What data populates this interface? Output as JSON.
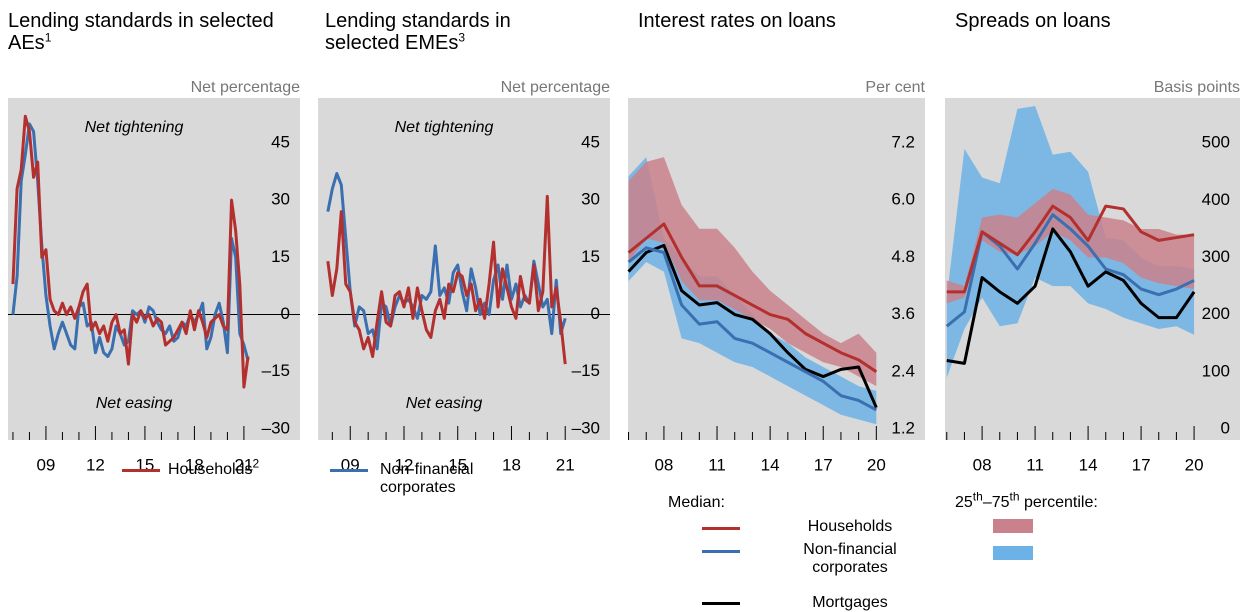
{
  "chart_data": [
    {
      "type": "line",
      "title": "Lending standards in selected AEs",
      "title_note": "1",
      "y_label": "Net percentage",
      "background": "#d9d9d9",
      "zero_line": true,
      "annotations": [
        "Net tightening",
        "Net easing"
      ],
      "xlim": [
        2006.7,
        2024.4
      ],
      "ylim": [
        -32.9,
        56.8
      ],
      "xticks": [
        {
          "value": 2009,
          "label": "09"
        },
        {
          "value": 2012,
          "label": "12"
        },
        {
          "value": 2015,
          "label": "15"
        },
        {
          "value": 2018,
          "label": "18"
        },
        {
          "value": 2021,
          "label": "21"
        }
      ],
      "xminorticks": [
        2007,
        2008,
        2010,
        2011,
        2013,
        2014,
        2016,
        2017,
        2019,
        2020
      ],
      "yticks": [
        {
          "value": -30,
          "label": "–30"
        },
        {
          "value": -15,
          "label": "–15"
        },
        0,
        15,
        30,
        45
      ],
      "x": [
        2007,
        2007.25,
        2007.5,
        2007.75,
        2008,
        2008.25,
        2008.5,
        2008.75,
        2009,
        2009.25,
        2009.5,
        2009.75,
        2010,
        2010.25,
        2010.5,
        2010.75,
        2011,
        2011.25,
        2011.5,
        2011.75,
        2012,
        2012.25,
        2012.5,
        2012.75,
        2013,
        2013.25,
        2013.5,
        2013.75,
        2014,
        2014.25,
        2014.5,
        2014.75,
        2015,
        2015.25,
        2015.5,
        2015.75,
        2016,
        2016.25,
        2016.5,
        2016.75,
        2017,
        2017.25,
        2017.5,
        2017.75,
        2018,
        2018.25,
        2018.5,
        2018.75,
        2019,
        2019.25,
        2019.5,
        2019.75,
        2020,
        2020.25,
        2020.5,
        2020.75,
        2021,
        2021.25
      ],
      "series": [
        {
          "name": "Households",
          "name_note": "2",
          "color": "#b3302f",
          "values": [
            8,
            33,
            38,
            52,
            48,
            36,
            40,
            15,
            17,
            4,
            1,
            0,
            3,
            0,
            2,
            -1,
            2,
            6,
            8,
            -4,
            -2,
            -5,
            -3,
            -7,
            -2,
            0,
            -5,
            -4,
            -13,
            0,
            -2,
            1,
            -1,
            0,
            -3,
            -1,
            -2,
            -8,
            -7,
            -6,
            -4,
            -2,
            -5,
            1,
            -4,
            1,
            -2,
            -6,
            -2,
            -1,
            0,
            -3,
            -4,
            30,
            22,
            8,
            -19,
            -11
          ]
        },
        {
          "color": "#3a6fb0",
          "values": [
            0,
            10,
            35,
            42,
            50,
            48,
            35,
            18,
            5,
            -3,
            -9,
            -5,
            -2,
            -5,
            -8,
            -9,
            2,
            3,
            -3,
            -2,
            -10,
            -6,
            -10,
            -11,
            -9,
            -3,
            -5,
            -8,
            -7,
            1,
            0,
            1,
            -2,
            2,
            1,
            -2,
            -4,
            -5,
            -3,
            -7,
            -6,
            -2,
            -3,
            0,
            -2,
            0,
            3,
            -9,
            -6,
            0,
            3,
            -2,
            -10,
            20,
            15,
            -5,
            -8,
            -12
          ]
        }
      ]
    },
    {
      "type": "line",
      "title": "Lending standards in selected EMEs",
      "title_note": "3",
      "y_label": "Net percentage",
      "background": "#d9d9d9",
      "zero_line": true,
      "annotations": [
        "Net tightening",
        "Net easing"
      ],
      "xlim": [
        2007.2,
        2023.5
      ],
      "ylim": [
        -32.9,
        56.8
      ],
      "xticks": [
        {
          "value": 2009,
          "label": "09"
        },
        {
          "value": 2012,
          "label": "12"
        },
        {
          "value": 2015,
          "label": "15"
        },
        {
          "value": 2018,
          "label": "18"
        },
        {
          "value": 2021,
          "label": "21"
        }
      ],
      "xminorticks": [
        2008,
        2010,
        2011,
        2013,
        2014,
        2016,
        2017,
        2019,
        2020
      ],
      "yticks": [
        {
          "value": -30,
          "label": "–30"
        },
        {
          "value": -15,
          "label": "–15"
        },
        0,
        15,
        30,
        45
      ],
      "x": [
        2007.75,
        2008,
        2008.25,
        2008.5,
        2008.75,
        2009,
        2009.25,
        2009.5,
        2009.75,
        2010,
        2010.25,
        2010.5,
        2010.75,
        2011,
        2011.25,
        2011.5,
        2011.75,
        2012,
        2012.25,
        2012.5,
        2012.75,
        2013,
        2013.25,
        2013.5,
        2013.75,
        2014,
        2014.25,
        2014.5,
        2014.75,
        2015,
        2015.25,
        2015.5,
        2015.75,
        2016,
        2016.25,
        2016.5,
        2016.75,
        2017,
        2017.25,
        2017.5,
        2017.75,
        2018,
        2018.25,
        2018.5,
        2018.75,
        2019,
        2019.25,
        2019.5,
        2019.75,
        2020,
        2020.25,
        2020.5,
        2020.75,
        2021
      ],
      "series": [
        {
          "color": "#b3302f",
          "values": [
            14,
            5,
            12,
            27,
            8,
            6,
            -2,
            -4,
            -9,
            -6,
            -11,
            -2,
            6,
            -2,
            -3,
            5,
            6,
            2,
            7,
            -1,
            7,
            1,
            -4,
            -6,
            1,
            4,
            -1,
            8,
            6,
            11,
            10,
            5,
            8,
            1,
            4,
            -1,
            8,
            19,
            2,
            12,
            7,
            2,
            -1,
            10,
            4,
            3,
            13,
            1,
            6,
            31,
            2,
            7,
            -2,
            -13
          ]
        },
        {
          "name": "Non-financial corporates",
          "color": "#3a6fb0",
          "values": [
            27,
            33,
            37,
            34,
            20,
            6,
            -3,
            2,
            1,
            -5,
            -4,
            -9,
            3,
            2,
            -3,
            2,
            5,
            3,
            4,
            2,
            -1,
            5,
            4,
            6,
            18,
            5,
            7,
            3,
            11,
            13,
            6,
            1,
            12,
            7,
            0,
            3,
            0,
            9,
            13,
            4,
            13,
            4,
            8,
            2,
            5,
            3,
            14,
            8,
            2,
            4,
            -5,
            9,
            -5,
            -1
          ]
        }
      ]
    },
    {
      "type": "line",
      "title": "Interest rates on loans",
      "y_label": "Per cent",
      "background": "#d9d9d9",
      "xlim": [
        2005.97,
        2022.75
      ],
      "ylim": [
        0.97,
        8.14
      ],
      "xticks": [
        {
          "value": 2008,
          "label": "08"
        },
        {
          "value": 2011,
          "label": "11"
        },
        {
          "value": 2014,
          "label": "14"
        },
        {
          "value": 2017,
          "label": "17"
        },
        {
          "value": 2020,
          "label": "20"
        }
      ],
      "xminorticks": [
        2006,
        2007,
        2009,
        2010,
        2012,
        2013,
        2015,
        2016,
        2018,
        2019
      ],
      "yticks": [
        1.2,
        2.4,
        3.6,
        4.8,
        {
          "value": 6,
          "label": "6.0"
        },
        7.2
      ],
      "x": [
        2006,
        2007,
        2008,
        2009,
        2010,
        2011,
        2012,
        2013,
        2014,
        2015,
        2016,
        2017,
        2018,
        2019,
        2020
      ],
      "bands": [
        {
          "color": "#c9818c",
          "lower": [
            4.7,
            5.2,
            5.1,
            4.3,
            3.9,
            3.9,
            3.7,
            3.5,
            3.3,
            3.0,
            2.8,
            2.6,
            2.5,
            2.3,
            2.1
          ],
          "upper": [
            6.4,
            6.8,
            6.9,
            5.9,
            5.4,
            5.4,
            5.0,
            4.5,
            4.1,
            3.8,
            3.5,
            3.2,
            3.0,
            3.2,
            2.8
          ]
        },
        {
          "color": "#6cb2e6",
          "lower": [
            4.3,
            4.7,
            4.5,
            3.1,
            3.0,
            2.8,
            2.6,
            2.5,
            2.3,
            2.1,
            1.9,
            1.7,
            1.5,
            1.4,
            1.3
          ],
          "upper": [
            6.5,
            6.9,
            5.2,
            4.8,
            4.4,
            4.4,
            4.0,
            3.6,
            3.2,
            3.0,
            2.7,
            2.5,
            2.3,
            2.1,
            2.0
          ]
        }
      ],
      "series": [
        {
          "name": "Households",
          "color": "#b3302f",
          "values": [
            4.9,
            5.2,
            5.5,
            4.8,
            4.2,
            4.2,
            4.0,
            3.8,
            3.6,
            3.5,
            3.2,
            3.0,
            2.8,
            2.65,
            2.4
          ]
        },
        {
          "name": "Non-financial corporates",
          "color": "#3a6fb0",
          "values": [
            4.7,
            5.0,
            4.9,
            3.8,
            3.4,
            3.45,
            3.1,
            3.0,
            2.8,
            2.6,
            2.4,
            2.2,
            1.9,
            1.8,
            1.6
          ]
        },
        {
          "name": "Mortgages",
          "color": "#000000",
          "values": [
            4.5,
            4.9,
            5.05,
            4.1,
            3.8,
            3.85,
            3.6,
            3.5,
            3.2,
            2.8,
            2.45,
            2.3,
            2.45,
            2.5,
            1.65
          ]
        }
      ]
    },
    {
      "type": "line",
      "title": "Spreads on loans",
      "y_label": "Basis points",
      "background": "#d9d9d9",
      "xlim": [
        2005.9,
        2022.6
      ],
      "ylim": [
        -19,
        579
      ],
      "xticks": [
        {
          "value": 2008,
          "label": "08"
        },
        {
          "value": 2011,
          "label": "11"
        },
        {
          "value": 2014,
          "label": "14"
        },
        {
          "value": 2017,
          "label": "17"
        },
        {
          "value": 2020,
          "label": "20"
        }
      ],
      "xminorticks": [
        2006,
        2007,
        2009,
        2010,
        2012,
        2013,
        2015,
        2016,
        2018,
        2019
      ],
      "yticks": [
        0,
        100,
        200,
        300,
        400,
        500
      ],
      "x": [
        2006,
        2007,
        2008,
        2009,
        2010,
        2011,
        2012,
        2013,
        2014,
        2015,
        2016,
        2017,
        2018,
        2019,
        2020
      ],
      "bands": [
        {
          "color": "#c9818c",
          "lower": [
            220,
            230,
            330,
            310,
            305,
            320,
            345,
            330,
            300,
            300,
            290,
            265,
            255,
            250,
            245
          ],
          "upper": [
            260,
            250,
            370,
            375,
            370,
            395,
            420,
            410,
            375,
            370,
            365,
            350,
            350,
            340,
            340
          ]
        },
        {
          "color": "#6cb2e6",
          "lower": [
            90,
            175,
            230,
            180,
            185,
            265,
            250,
            250,
            220,
            210,
            195,
            185,
            175,
            180,
            165
          ],
          "upper": [
            230,
            490,
            440,
            430,
            560,
            565,
            480,
            485,
            450,
            335,
            330,
            300,
            285,
            285,
            280
          ]
        }
      ],
      "series": [
        {
          "color": "#b3302f",
          "values": [
            240,
            240,
            345,
            325,
            305,
            345,
            390,
            370,
            330,
            390,
            385,
            345,
            330,
            335,
            340
          ]
        },
        {
          "color": "#3a6fb0",
          "values": [
            180,
            205,
            345,
            320,
            280,
            325,
            375,
            350,
            320,
            280,
            270,
            245,
            235,
            245,
            260
          ]
        },
        {
          "color": "#000000",
          "values": [
            120,
            115,
            265,
            240,
            220,
            250,
            350,
            310,
            250,
            275,
            260,
            220,
            195,
            195,
            240
          ]
        }
      ]
    }
  ],
  "legend": {
    "median_title": "Median:",
    "percentile_title": [
      "25",
      "th",
      "–75",
      "th",
      " percentile:"
    ]
  }
}
